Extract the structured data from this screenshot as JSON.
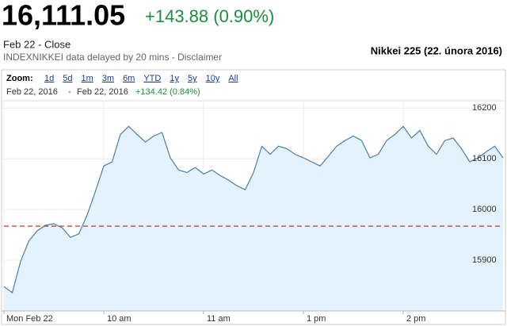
{
  "quote": {
    "price": "16,111.05",
    "change": "+143.88 (0.90%)",
    "date": "Feb 22 - Close",
    "source": "INDEXNIKKEI data delayed by 20 mins - Disclaimer",
    "caption": "Nikkei 225 (22. února 2016)"
  },
  "zoom": {
    "label": "Zoom:",
    "options": [
      "1d",
      "5d",
      "1m",
      "3m",
      "6m",
      "YTD",
      "1y",
      "5y",
      "10y",
      "All"
    ]
  },
  "range": {
    "from": "Feb 22, 2016",
    "separator": "-",
    "to": "Feb 22, 2016",
    "change": "+134.42 (0.84%)"
  },
  "chart_data": {
    "type": "area",
    "categories": [
      "Mon Feb 22",
      null,
      null,
      null,
      null,
      null,
      null,
      null,
      null,
      null,
      null,
      null,
      "10 am",
      null,
      null,
      null,
      null,
      null,
      null,
      null,
      null,
      null,
      null,
      null,
      "11 am",
      null,
      null,
      null,
      null,
      null,
      null,
      null,
      null,
      null,
      null,
      null,
      "1 pm",
      null,
      null,
      null,
      null,
      null,
      null,
      null,
      null,
      null,
      null,
      null,
      "2 pm",
      null,
      null,
      null,
      null,
      null,
      null,
      null,
      null,
      null,
      null,
      null,
      null
    ],
    "values": [
      15848,
      15836,
      15898,
      15938,
      15958,
      15969,
      15972,
      15964,
      15945,
      15952,
      15989,
      16036,
      16086,
      16094,
      16148,
      16164,
      16148,
      16133,
      16145,
      16152,
      16102,
      16078,
      16073,
      16083,
      16070,
      16078,
      16067,
      16058,
      16047,
      16039,
      16073,
      16125,
      16109,
      16125,
      16120,
      16109,
      16102,
      16094,
      16086,
      16105,
      16125,
      16136,
      16145,
      16136,
      16102,
      16109,
      16136,
      16148,
      16164,
      16141,
      16156,
      16125,
      16109,
      16136,
      16141,
      16120,
      16094,
      16102,
      16114,
      16125,
      16102
    ],
    "color": "#4a7fa8",
    "fill": "#e3f2fc",
    "reference_line": 15967.17,
    "reference_color": "#c0392b",
    "ylim": [
      15800,
      16213
    ],
    "yticks": [
      15900,
      16000,
      16100,
      16200
    ],
    "grid": true
  }
}
